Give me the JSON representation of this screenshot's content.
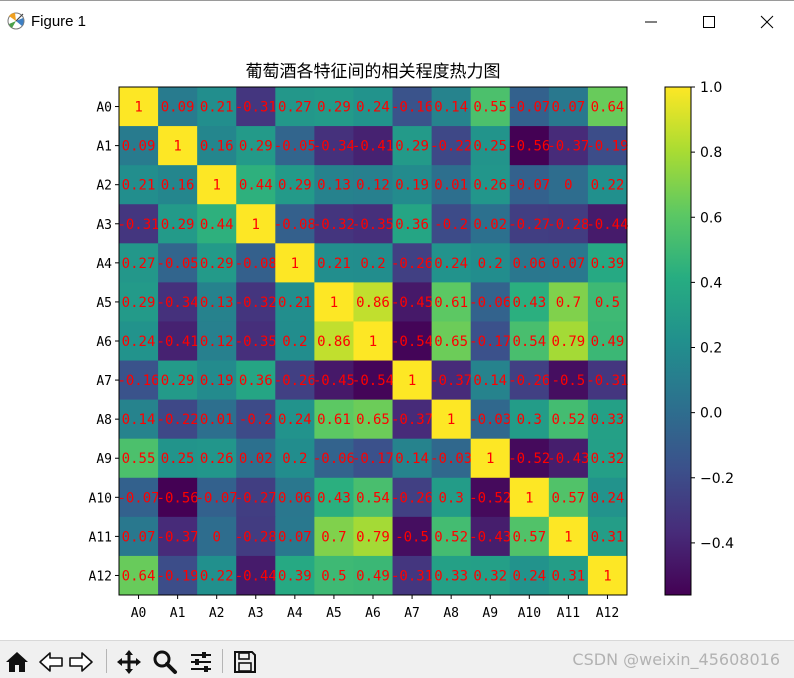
{
  "window": {
    "title": "Figure 1",
    "icon": "matplotlib-icon",
    "controls": [
      "minimize-icon",
      "maximize-icon",
      "close-icon"
    ]
  },
  "toolbar": {
    "buttons": [
      "home-icon",
      "back-icon",
      "forward-icon",
      "pan-icon",
      "zoom-icon",
      "configure-subplots-icon",
      "save-icon"
    ],
    "watermark": "CSDN @weixin_45608016"
  },
  "chart_data": {
    "type": "heatmap",
    "title": "葡萄酒各特征间的相关程度热力图",
    "xlabel": "",
    "ylabel": "",
    "colormap": "viridis",
    "annotation_color": "#ff0000",
    "rows": [
      "A0",
      "A1",
      "A2",
      "A3",
      "A4",
      "A5",
      "A6",
      "A7",
      "A8",
      "A9",
      "A10",
      "A11",
      "A12"
    ],
    "cols": [
      "A0",
      "A1",
      "A2",
      "A3",
      "A4",
      "A5",
      "A6",
      "A7",
      "A8",
      "A9",
      "A10",
      "A11",
      "A12"
    ],
    "values": [
      [
        1.0,
        0.09,
        0.21,
        -0.31,
        0.27,
        0.29,
        0.24,
        -0.16,
        0.14,
        0.55,
        -0.07,
        0.07,
        0.64
      ],
      [
        0.09,
        1.0,
        0.16,
        0.29,
        -0.05,
        -0.34,
        -0.41,
        0.29,
        -0.22,
        0.25,
        -0.56,
        -0.37,
        -0.19
      ],
      [
        0.21,
        0.16,
        1.0,
        0.44,
        0.29,
        0.13,
        0.12,
        0.19,
        0.01,
        0.26,
        -0.07,
        0.0,
        0.22
      ],
      [
        -0.31,
        0.29,
        0.44,
        1.0,
        -0.08,
        -0.32,
        -0.35,
        0.36,
        -0.2,
        0.02,
        -0.27,
        -0.28,
        -0.44
      ],
      [
        0.27,
        -0.05,
        0.29,
        -0.08,
        1.0,
        0.21,
        0.2,
        -0.26,
        0.24,
        0.2,
        0.06,
        0.07,
        0.39
      ],
      [
        0.29,
        -0.34,
        0.13,
        -0.32,
        0.21,
        1.0,
        0.86,
        -0.45,
        0.61,
        -0.06,
        0.43,
        0.7,
        0.5
      ],
      [
        0.24,
        -0.41,
        0.12,
        -0.35,
        0.2,
        0.86,
        1.0,
        -0.54,
        0.65,
        -0.17,
        0.54,
        0.79,
        0.49
      ],
      [
        -0.16,
        0.29,
        0.19,
        0.36,
        -0.26,
        -0.45,
        -0.54,
        1.0,
        -0.37,
        0.14,
        -0.26,
        -0.5,
        -0.31
      ],
      [
        0.14,
        -0.22,
        0.01,
        -0.2,
        0.24,
        0.61,
        0.65,
        -0.37,
        1.0,
        -0.03,
        0.3,
        0.52,
        0.33
      ],
      [
        0.55,
        0.25,
        0.26,
        0.02,
        0.2,
        -0.06,
        -0.17,
        0.14,
        -0.03,
        1.0,
        -0.52,
        -0.43,
        0.32
      ],
      [
        -0.07,
        -0.56,
        -0.07,
        -0.27,
        0.06,
        0.43,
        0.54,
        -0.26,
        0.3,
        -0.52,
        1.0,
        0.57,
        0.24
      ],
      [
        0.07,
        -0.37,
        0.0,
        -0.28,
        0.07,
        0.7,
        0.79,
        -0.5,
        0.52,
        -0.43,
        0.57,
        1.0,
        0.31
      ],
      [
        0.64,
        -0.19,
        0.22,
        -0.44,
        0.39,
        0.5,
        0.49,
        -0.31,
        0.33,
        0.32,
        0.24,
        0.31,
        1.0
      ]
    ],
    "colorbar": {
      "min": -0.56,
      "max": 1.0,
      "ticks": [
        1.0,
        0.8,
        0.6,
        0.4,
        0.2,
        0.0,
        -0.2,
        -0.4
      ],
      "tick_labels": [
        "1.0",
        "0.8",
        "0.6",
        "0.4",
        "0.2",
        "0.0",
        "−0.2",
        "−0.4"
      ]
    }
  }
}
